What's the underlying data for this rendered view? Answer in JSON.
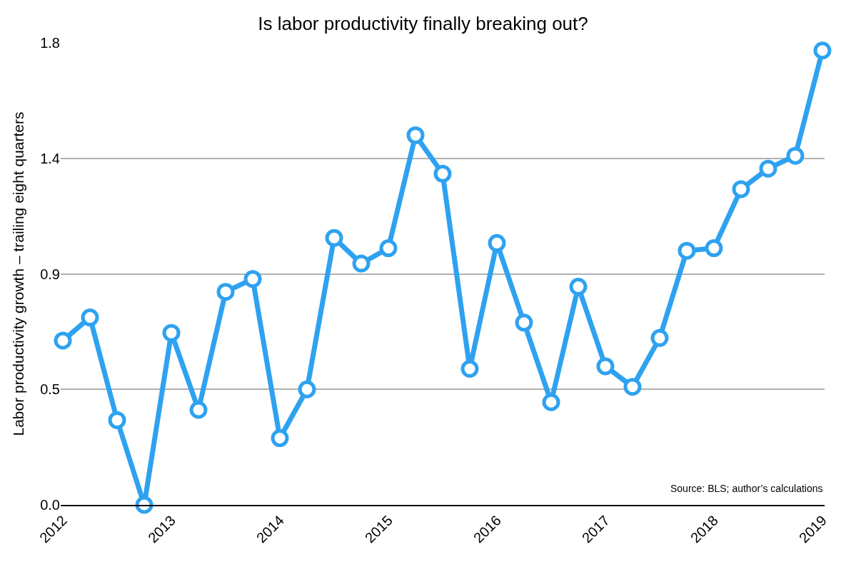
{
  "chart_data": {
    "type": "line",
    "title": "Is labor productivity finally breaking out?",
    "ylabel": "Labor productivity growth – trailing eight quarters",
    "x": [
      2012,
      2012.25,
      2012.5,
      2012.75,
      2013,
      2013.25,
      2013.5,
      2013.75,
      2014,
      2014.25,
      2014.5,
      2014.75,
      2015,
      2015.25,
      2015.5,
      2015.75,
      2016,
      2016.25,
      2016.5,
      2016.75,
      2017,
      2017.25,
      2017.5,
      2017.75,
      2018,
      2018.25,
      2018.5,
      2018.75,
      2019
    ],
    "series": [
      {
        "color": "#2ea2f0",
        "values": [
          0.64,
          0.73,
          0.33,
          0,
          0.67,
          0.37,
          0.83,
          0.88,
          0.26,
          0.45,
          1.04,
          0.94,
          1.0,
          1.44,
          1.29,
          0.53,
          1.02,
          0.71,
          0.4,
          0.85,
          0.54,
          0.46,
          0.65,
          0.99,
          1.0,
          1.23,
          1.31,
          1.36,
          1.77
        ]
      }
    ],
    "xlim": [
      2011.98,
      2019.02
    ],
    "xticks": [
      2012,
      2013,
      2014,
      2015,
      2016,
      2017,
      2018,
      2019
    ],
    "ylim": [
      0,
      1.8
    ],
    "yticks": [
      {
        "value": 0,
        "label": "0.0"
      },
      {
        "value": 0.45,
        "label": "0.5"
      },
      {
        "value": 0.9,
        "label": "0.9"
      },
      {
        "value": 1.35,
        "label": "1.4"
      },
      {
        "value": 1.8,
        "label": "1.8"
      }
    ],
    "grid": "y",
    "marker": "circle",
    "line_style": "solid",
    "annotations": [
      "Source: BLS; author’s calculations"
    ]
  }
}
